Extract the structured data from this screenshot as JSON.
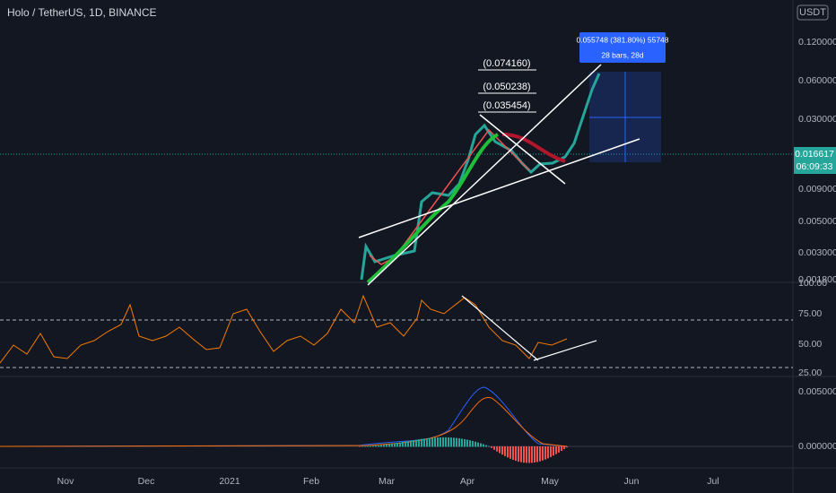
{
  "header": {
    "title": "Holo / TetherUS, 1D, BINANCE",
    "currency": "USDT"
  },
  "price_axis": {
    "labels": [
      "0.120000",
      "0.060000",
      "0.030000",
      "0.009000",
      "0.005000",
      "0.003000",
      "0.001800"
    ],
    "last_price": "0.016617",
    "countdown": "06:09:33"
  },
  "rsi_axis": {
    "labels": [
      "100.00",
      "75.00",
      "50.00",
      "25.00"
    ]
  },
  "macd_axis": {
    "labels": [
      "0.005000",
      "0.000000"
    ]
  },
  "time_axis": {
    "labels": [
      "Nov",
      "Dec",
      "2021",
      "Feb",
      "Mar",
      "Apr",
      "May",
      "Jun",
      "Jul"
    ]
  },
  "annotations": {
    "fib": [
      "(0.074160)",
      "(0.050238)",
      "(0.035454)"
    ],
    "measure": {
      "line1": "0.055748 (381.80%) 55748",
      "line2": "28 bars, 28d"
    }
  }
}
